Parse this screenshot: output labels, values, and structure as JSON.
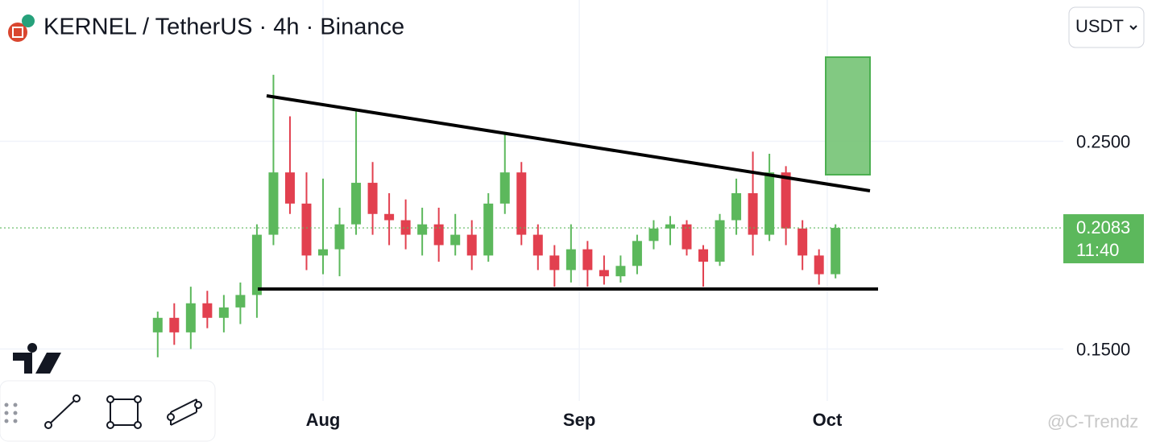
{
  "chart_data": {
    "type": "candlestick",
    "title": "KERNEL / TetherUS · 4h · Binance",
    "currency": "USDT",
    "watermark": "@C-Trendz",
    "up_color": "#5cb85c",
    "down_color": "#e2404f",
    "last_price": 0.2083,
    "countdown": "11:40",
    "ylim": [
      0.125,
      0.318
    ],
    "yticks": [
      {
        "value": 0.15,
        "label": "0.1500"
      },
      {
        "value": 0.25,
        "label": "0.2500"
      }
    ],
    "xlim": [
      -9.54,
      54.78
    ],
    "xticks": [
      {
        "value": 10,
        "label": "Aug"
      },
      {
        "value": 25.5,
        "label": "Sep"
      },
      {
        "value": 40.5,
        "label": "Oct"
      }
    ],
    "grid": true,
    "candles": [
      [
        0.158,
        0.168,
        0.146,
        0.165
      ],
      [
        0.165,
        0.172,
        0.152,
        0.158
      ],
      [
        0.158,
        0.18,
        0.15,
        0.172
      ],
      [
        0.172,
        0.178,
        0.16,
        0.165
      ],
      [
        0.165,
        0.176,
        0.158,
        0.17
      ],
      [
        0.17,
        0.182,
        0.162,
        0.176
      ],
      [
        0.176,
        0.21,
        0.165,
        0.205
      ],
      [
        0.205,
        0.282,
        0.2,
        0.235
      ],
      [
        0.235,
        0.262,
        0.215,
        0.22
      ],
      [
        0.22,
        0.235,
        0.188,
        0.195
      ],
      [
        0.195,
        0.232,
        0.186,
        0.198
      ],
      [
        0.198,
        0.218,
        0.185,
        0.21
      ],
      [
        0.21,
        0.265,
        0.205,
        0.23
      ],
      [
        0.23,
        0.24,
        0.205,
        0.215
      ],
      [
        0.215,
        0.225,
        0.2,
        0.212
      ],
      [
        0.212,
        0.222,
        0.198,
        0.205
      ],
      [
        0.205,
        0.218,
        0.195,
        0.21
      ],
      [
        0.21,
        0.218,
        0.192,
        0.2
      ],
      [
        0.2,
        0.215,
        0.195,
        0.205
      ],
      [
        0.205,
        0.212,
        0.188,
        0.195
      ],
      [
        0.195,
        0.225,
        0.192,
        0.22
      ],
      [
        0.22,
        0.254,
        0.215,
        0.235
      ],
      [
        0.235,
        0.24,
        0.2,
        0.205
      ],
      [
        0.205,
        0.21,
        0.188,
        0.195
      ],
      [
        0.195,
        0.2,
        0.18,
        0.188
      ],
      [
        0.188,
        0.21,
        0.182,
        0.198
      ],
      [
        0.198,
        0.202,
        0.18,
        0.188
      ],
      [
        0.188,
        0.195,
        0.181,
        0.185
      ],
      [
        0.185,
        0.195,
        0.182,
        0.19
      ],
      [
        0.19,
        0.205,
        0.186,
        0.202
      ],
      [
        0.202,
        0.212,
        0.198,
        0.208
      ],
      [
        0.208,
        0.214,
        0.2,
        0.21
      ],
      [
        0.21,
        0.212,
        0.195,
        0.198
      ],
      [
        0.198,
        0.2,
        0.18,
        0.192
      ],
      [
        0.192,
        0.215,
        0.19,
        0.212
      ],
      [
        0.212,
        0.232,
        0.205,
        0.225
      ],
      [
        0.225,
        0.245,
        0.195,
        0.205
      ],
      [
        0.205,
        0.244,
        0.202,
        0.235
      ],
      [
        0.235,
        0.238,
        0.2,
        0.208
      ],
      [
        0.208,
        0.212,
        0.188,
        0.195
      ],
      [
        0.195,
        0.198,
        0.181,
        0.186
      ],
      [
        0.186,
        0.21,
        0.184,
        0.2083
      ]
    ]
  }
}
